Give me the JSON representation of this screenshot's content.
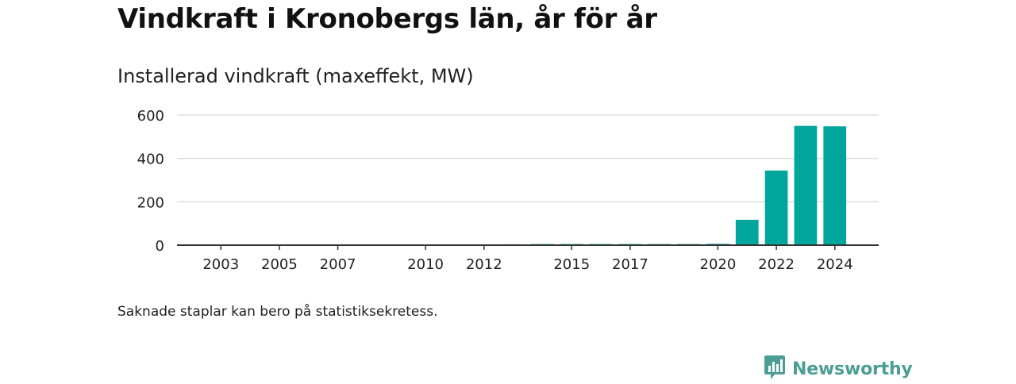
{
  "title": "Vindkraft i Kronobergs län, år för år",
  "subtitle": "Installerad vindkraft (maxeffekt, MW)",
  "footnote": "Saknade staplar kan bero på statistiksekretess.",
  "logo": {
    "text": "Newsworthy",
    "icon": "newsworthy-logo-icon",
    "color": "#4c9e95"
  },
  "colors": {
    "bar": "#00a59b",
    "grid": "#dddddd",
    "axis": "#333333"
  },
  "chart_data": {
    "type": "bar",
    "title": "Vindkraft i Kronobergs län, år för år",
    "subtitle": "Installerad vindkraft (maxeffekt, MW)",
    "xlabel": "",
    "ylabel": "",
    "x_range": [
      2001.5,
      2025.5
    ],
    "ylim": [
      0,
      600
    ],
    "y_ticks": [
      0,
      200,
      400,
      600
    ],
    "x_ticks": [
      "2003",
      "2005",
      "2007",
      "2010",
      "2012",
      "2015",
      "2017",
      "2020",
      "2022",
      "2024"
    ],
    "grid": true,
    "categories": [
      "2012",
      "2013",
      "2014",
      "2015",
      "2016",
      "2017",
      "2018",
      "2019",
      "2020",
      "2021",
      "2022",
      "2023",
      "2024"
    ],
    "values": [
      3,
      4,
      5,
      5,
      5,
      5,
      5,
      5,
      6,
      117,
      344,
      550,
      548
    ]
  }
}
